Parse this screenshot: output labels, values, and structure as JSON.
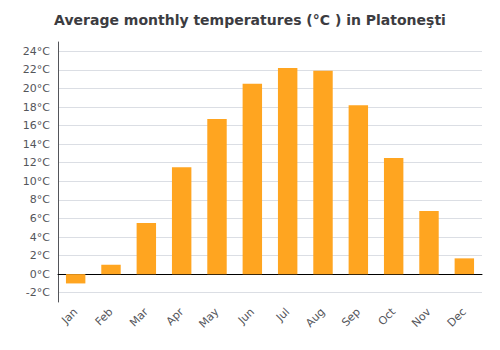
{
  "chart_data": {
    "type": "bar",
    "title": "Average monthly temperatures (°C ) in Platoneşti",
    "categories": [
      "Jan",
      "Feb",
      "Mar",
      "Apr",
      "May",
      "Jun",
      "Jul",
      "Aug",
      "Sep",
      "Oct",
      "Nov",
      "Dec"
    ],
    "values": [
      -1.0,
      1.0,
      5.5,
      11.5,
      16.7,
      20.5,
      22.2,
      21.9,
      18.2,
      12.5,
      6.8,
      1.7
    ],
    "color": "#FFA520",
    "ylim": [
      -3,
      25
    ],
    "yticks": [
      {
        "value": -2,
        "label": "-2°C"
      },
      {
        "value": 0,
        "label": "0°C"
      },
      {
        "value": 2,
        "label": "2°C"
      },
      {
        "value": 4,
        "label": "4°C"
      },
      {
        "value": 6,
        "label": "6°C"
      },
      {
        "value": 8,
        "label": "8°C"
      },
      {
        "value": 10,
        "label": "10°C"
      },
      {
        "value": 12,
        "label": "12°C"
      },
      {
        "value": 14,
        "label": "14°C"
      },
      {
        "value": 16,
        "label": "16°C"
      },
      {
        "value": 18,
        "label": "18°C"
      },
      {
        "value": 20,
        "label": "20°C"
      },
      {
        "value": 22,
        "label": "22°C"
      },
      {
        "value": 24,
        "label": "24°C"
      }
    ],
    "grid": true
  }
}
